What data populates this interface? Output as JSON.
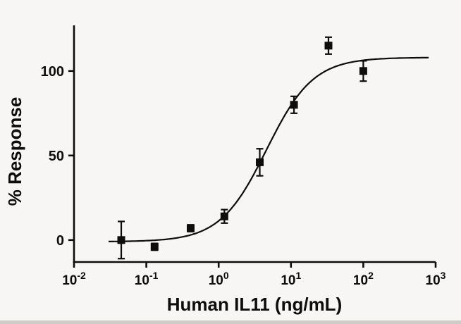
{
  "figure": {
    "background": "#f8f6f4",
    "ink": "#0d0d0d"
  },
  "chart_data": {
    "type": "scatter",
    "title": "",
    "xlabel": "Human IL11 (ng/mL)",
    "ylabel": "% Response",
    "x_scale": "log10",
    "xlog_range": [
      -2,
      3
    ],
    "ylim": [
      -13,
      127
    ],
    "yticks": [
      0,
      50,
      100
    ],
    "xticks": [
      {
        "value": 0.01,
        "base": "10",
        "exp": "-2"
      },
      {
        "value": 0.1,
        "base": "10",
        "exp": "-1"
      },
      {
        "value": 1,
        "base": "10",
        "exp": "0"
      },
      {
        "value": 10,
        "base": "10",
        "exp": "1"
      },
      {
        "value": 100,
        "base": "10",
        "exp": "2"
      },
      {
        "value": 1000,
        "base": "10",
        "exp": "3"
      }
    ],
    "grid": "off",
    "legend": "none",
    "series": [
      {
        "name": "Human IL11",
        "marker": "filled-square",
        "color": "#0d0d0d",
        "points": [
          {
            "x": 0.045,
            "y": 0,
            "err": 11
          },
          {
            "x": 0.13,
            "y": -4,
            "err": 2
          },
          {
            "x": 0.41,
            "y": 7,
            "err": 2
          },
          {
            "x": 1.2,
            "y": 14,
            "err": 4
          },
          {
            "x": 3.7,
            "y": 46,
            "err": 8
          },
          {
            "x": 11,
            "y": 80,
            "err": 5
          },
          {
            "x": 33,
            "y": 115,
            "err": 5
          },
          {
            "x": 100,
            "y": 100,
            "err": 6
          }
        ]
      }
    ],
    "fit_curve": {
      "model": "four-parameter-logistic",
      "bottom": -1,
      "top": 108,
      "ec50": 4.6,
      "hill": 1.35,
      "x_start": 0.03,
      "x_end": 800,
      "color": "#0d0d0d"
    }
  }
}
